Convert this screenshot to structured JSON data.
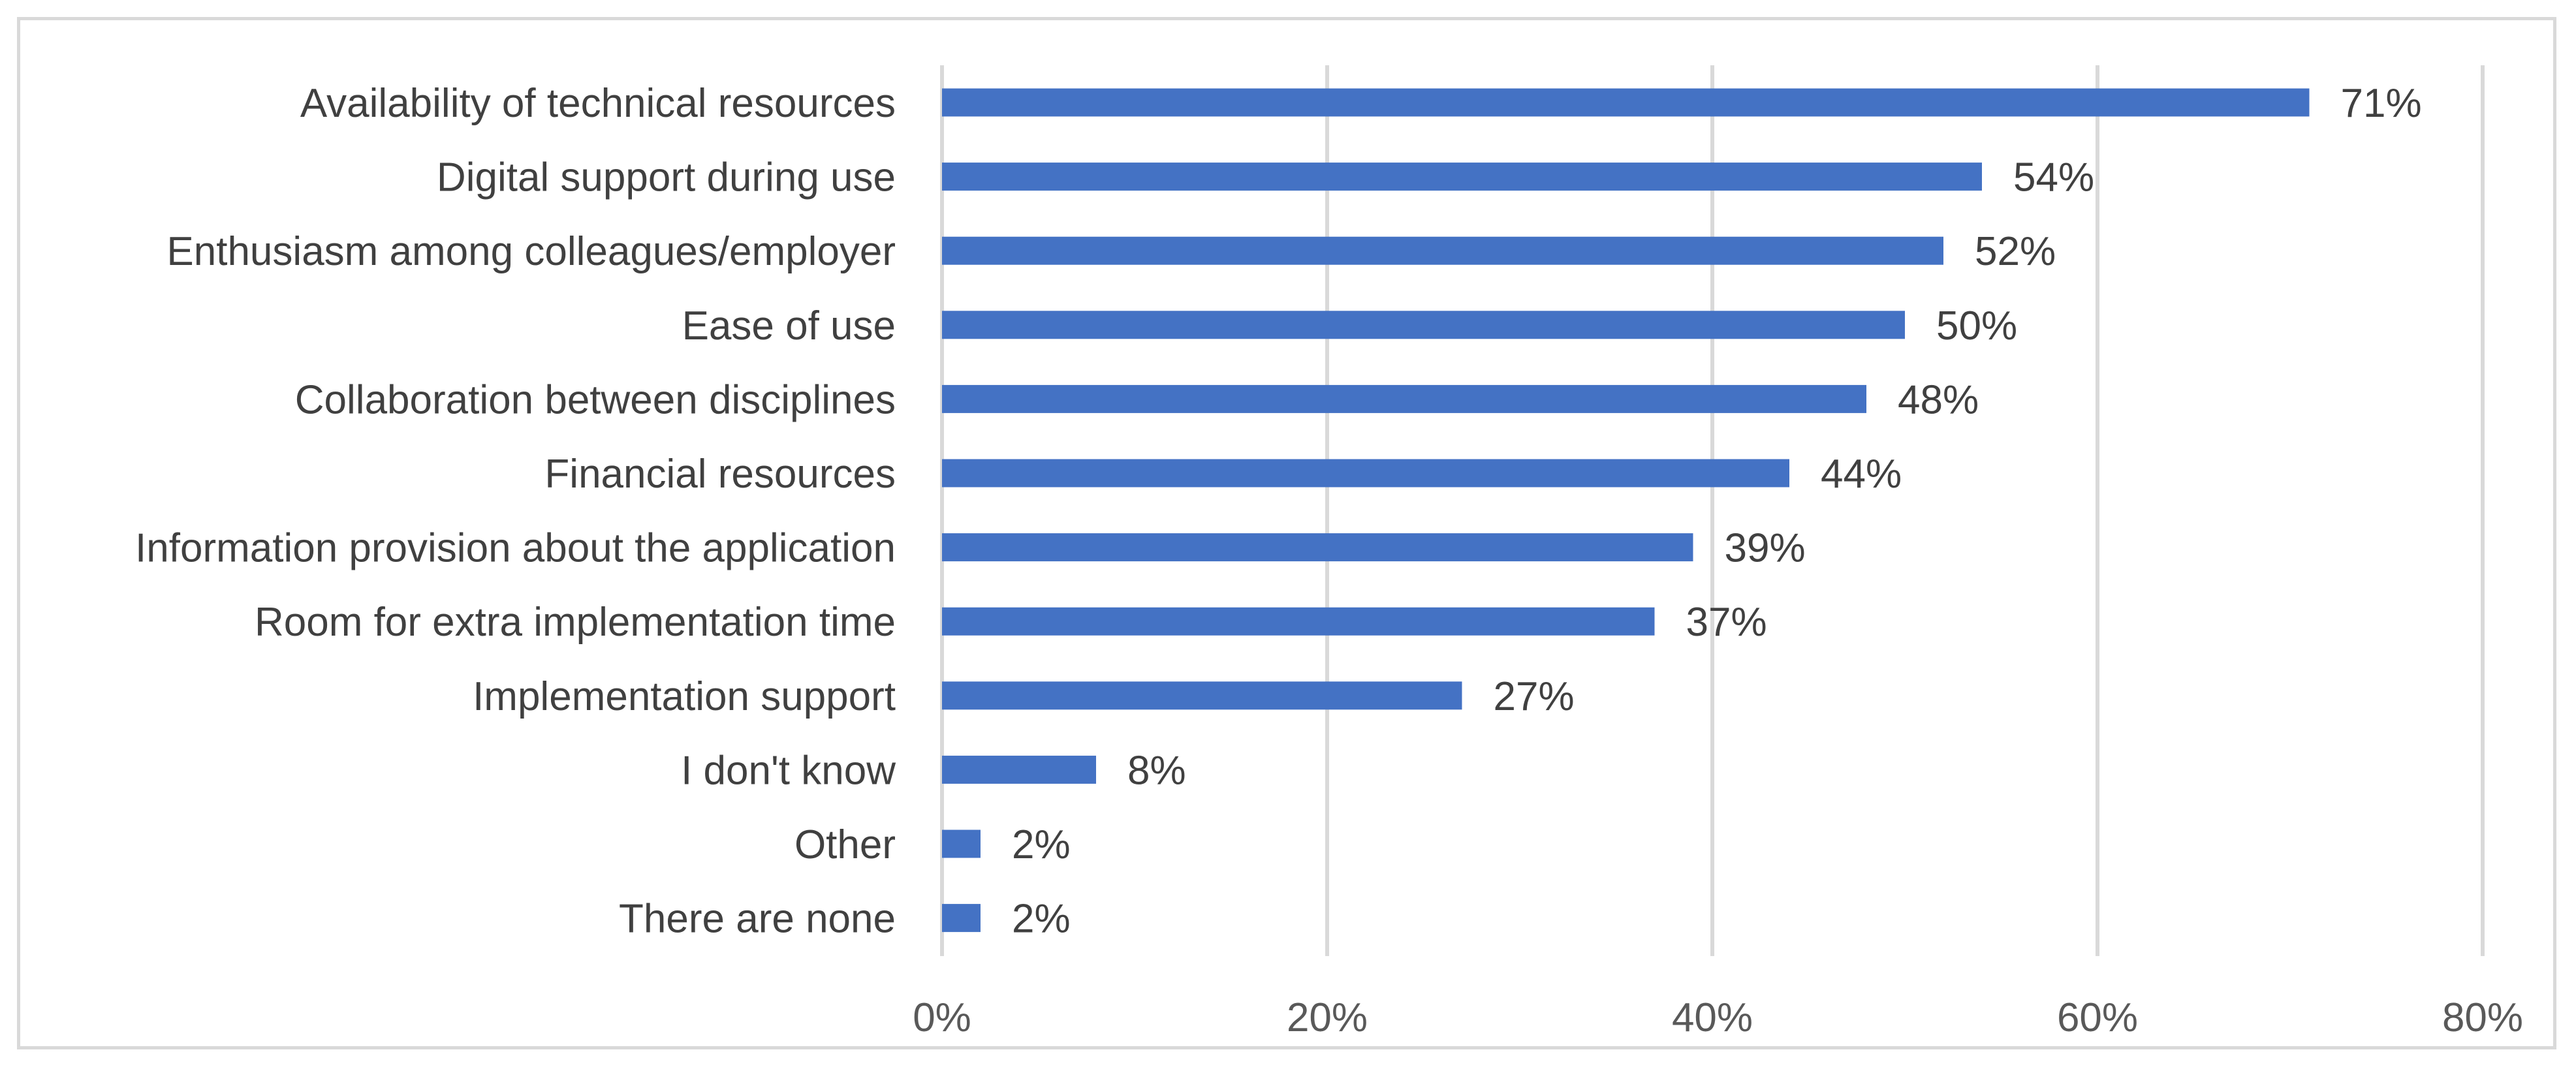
{
  "chart_data": {
    "type": "bar",
    "orientation": "horizontal",
    "title": "",
    "xlabel": "",
    "ylabel": "",
    "categories": [
      "Availability of technical resources",
      "Digital support during use",
      "Enthusiasm among colleagues/employer",
      "Ease of use",
      "Collaboration between disciplines",
      "Financial resources",
      "Information provision about the application",
      "Room for extra implementation time",
      "Implementation support",
      "I don't know",
      "Other",
      "There are none"
    ],
    "values": [
      71,
      54,
      52,
      50,
      48,
      44,
      39,
      37,
      27,
      8,
      2,
      2
    ],
    "value_labels": [
      "71%",
      "54%",
      "52%",
      "50%",
      "48%",
      "44%",
      "39%",
      "37%",
      "27%",
      "8%",
      "2%",
      "2%"
    ],
    "xlim": [
      0,
      80
    ],
    "xticks": [
      0,
      20,
      40,
      60,
      80
    ],
    "xtick_labels": [
      "0%",
      "20%",
      "40%",
      "60%",
      "80%"
    ],
    "grid": "vertical",
    "legend": "none",
    "bar_color": "#4472c4"
  }
}
